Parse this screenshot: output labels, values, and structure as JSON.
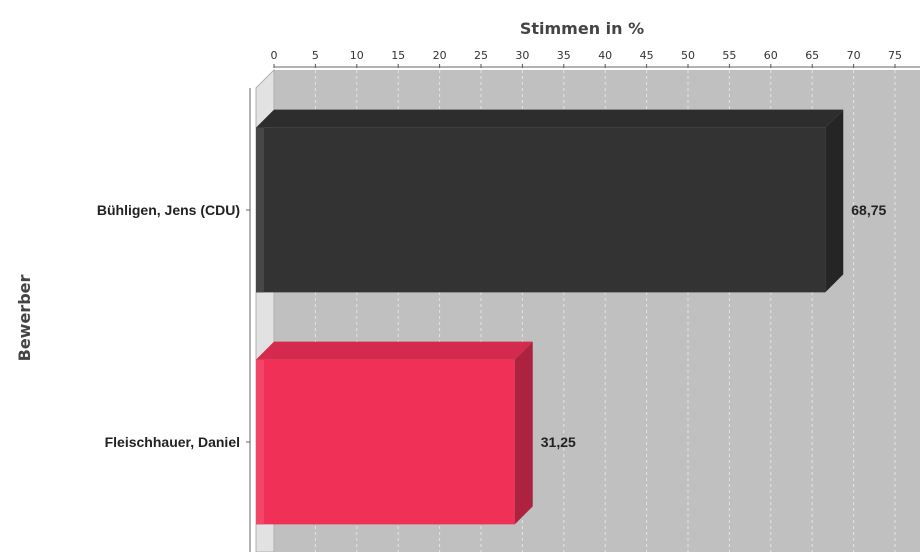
{
  "chart_data": {
    "type": "bar",
    "orientation": "horizontal",
    "xlabel": "Stimmen in %",
    "ylabel": "Bewerber",
    "xlim": [
      0,
      75
    ],
    "x_ticks": [
      0,
      5,
      10,
      15,
      20,
      25,
      30,
      35,
      40,
      45,
      50,
      55,
      60,
      65,
      70,
      75
    ],
    "grid": true,
    "categories": [
      "Bühligen, Jens (CDU)",
      "Fleischhauer, Daniel"
    ],
    "values": [
      68.75,
      31.25
    ],
    "value_labels": [
      "68,75",
      "31,25"
    ],
    "colors": [
      "#333333",
      "#f03057"
    ],
    "plot_background": "#c0c0c0"
  }
}
